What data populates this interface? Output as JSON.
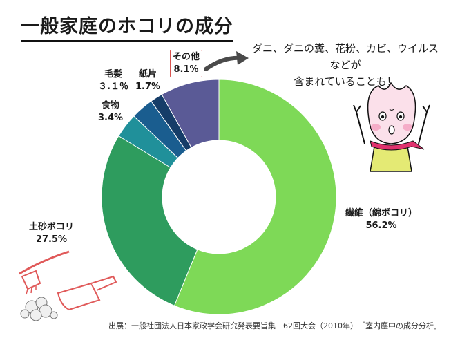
{
  "title": "一般家庭のホコリの成分",
  "note": {
    "line1": "ダニ、ダニの糞、花粉、カビ、ウイルスなどが",
    "line2": "含まれていることも！"
  },
  "source": "出展：一般社団法人日本家政学会研究発表要旨集　62回大会（2010年）　「室内塵中の成分分析」",
  "chart_data": {
    "type": "pie",
    "donut": true,
    "slices": [
      {
        "label": "繊維（綿ボコリ）",
        "value": 56.2,
        "value_text": "56.2%",
        "color": "#7ed957"
      },
      {
        "label": "土砂ボコリ",
        "value": 27.5,
        "value_text": "27.5%",
        "color": "#2e9c5e"
      },
      {
        "label": "食物",
        "value": 3.4,
        "value_text": "3.4%",
        "color": "#20909a"
      },
      {
        "label": "毛髪",
        "value": 3.1,
        "value_text": "３.１％",
        "color": "#1a5d8f"
      },
      {
        "label": "紙片",
        "value": 1.7,
        "value_text": "1.7%",
        "color": "#163d68"
      },
      {
        "label": "その他",
        "value": 8.1,
        "value_text": "8.1%",
        "color": "#5a5a96"
      }
    ]
  },
  "colors": {
    "other_box_border": "#d9534f",
    "arrow": "#4a4a4a",
    "scarf": "#e0326e",
    "mascot_body": "#e4ea74",
    "mascot_head": "#fbe0ea"
  },
  "icons": [
    "arrow-icon",
    "mascot-illustration",
    "broom-dustpan-illustration"
  ]
}
